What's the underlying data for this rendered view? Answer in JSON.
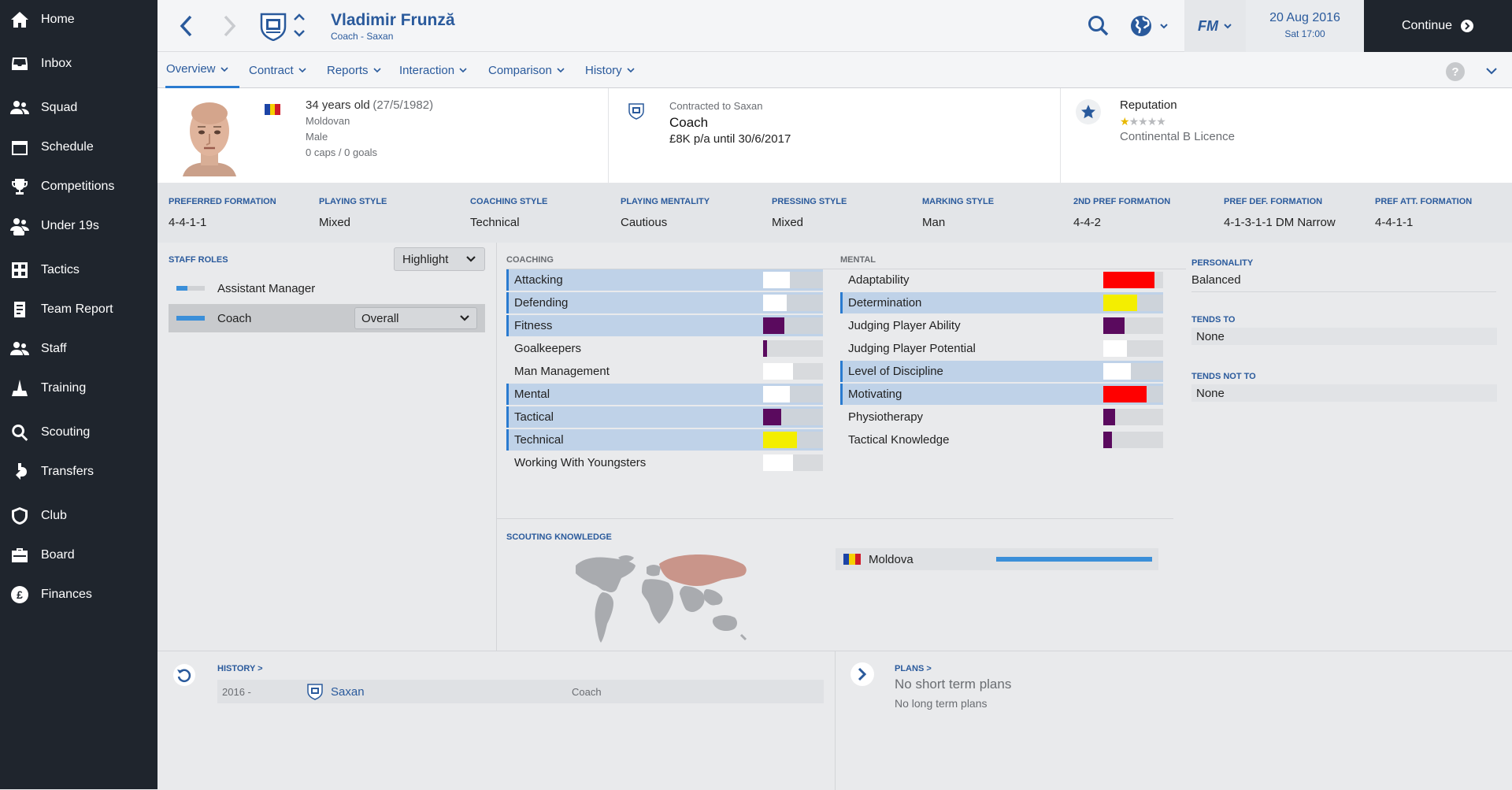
{
  "sidebar": {
    "items": [
      {
        "label": "Home",
        "icon": "home-icon"
      },
      {
        "label": "Inbox",
        "icon": "inbox-icon"
      },
      {
        "label": "Squad",
        "icon": "squad-icon"
      },
      {
        "label": "Schedule",
        "icon": "calendar-icon"
      },
      {
        "label": "Competitions",
        "icon": "trophy-icon"
      },
      {
        "label": "Under 19s",
        "icon": "under19-icon"
      },
      {
        "label": "Tactics",
        "icon": "tactics-icon"
      },
      {
        "label": "Team Report",
        "icon": "report-icon"
      },
      {
        "label": "Staff",
        "icon": "staff-icon"
      },
      {
        "label": "Training",
        "icon": "training-icon"
      },
      {
        "label": "Scouting",
        "icon": "search-icon"
      },
      {
        "label": "Transfers",
        "icon": "transfers-icon"
      },
      {
        "label": "Club",
        "icon": "shield-icon"
      },
      {
        "label": "Board",
        "icon": "briefcase-icon"
      },
      {
        "label": "Finances",
        "icon": "pound-icon"
      }
    ]
  },
  "header": {
    "name": "Vladimir Frunză",
    "subtitle": "Coach - Saxan",
    "fm_label": "FM",
    "date": "20 Aug 2016",
    "day_time": "Sat 17:00",
    "continue_label": "Continue"
  },
  "tabs": [
    "Overview",
    "Contract",
    "Reports",
    "Interaction",
    "Comparison",
    "History"
  ],
  "bio": {
    "age": "34 years old",
    "dob": "(27/5/1982)",
    "nationality": "Moldovan",
    "gender": "Male",
    "caps": "0 caps / 0 goals"
  },
  "contract": {
    "label": "Contracted to Saxan",
    "role": "Coach",
    "wage": "£8K p/a until 30/6/2017"
  },
  "reputation": {
    "label": "Reputation",
    "stars_filled": 1,
    "stars_total": 5,
    "licence": "Continental B Licence"
  },
  "tactics": [
    {
      "label": "PREFERRED FORMATION",
      "value": "4-4-1-1"
    },
    {
      "label": "PLAYING STYLE",
      "value": "Mixed"
    },
    {
      "label": "COACHING STYLE",
      "value": "Technical"
    },
    {
      "label": "PLAYING MENTALITY",
      "value": "Cautious"
    },
    {
      "label": "PRESSING STYLE",
      "value": "Mixed"
    },
    {
      "label": "MARKING STYLE",
      "value": "Man"
    },
    {
      "label": "2ND PREF FORMATION",
      "value": "4-4-2"
    },
    {
      "label": "PREF DEF. FORMATION",
      "value": "4-1-3-1-1 DM Narrow"
    },
    {
      "label": "PREF ATT. FORMATION",
      "value": "4-4-1-1"
    }
  ],
  "staff_roles": {
    "title": "STAFF ROLES",
    "highlight_label": "Highlight",
    "roles": [
      {
        "label": "Assistant Manager",
        "level": 0.4
      },
      {
        "label": "Coach",
        "level": 1.0,
        "selected": true
      }
    ],
    "overall_label": "Overall"
  },
  "coaching": {
    "title": "COACHING",
    "attributes": [
      {
        "label": "Attacking",
        "highlighted": true,
        "level": 0.45,
        "color": "#ffffff"
      },
      {
        "label": "Defending",
        "highlighted": true,
        "level": 0.4,
        "color": "#ffffff"
      },
      {
        "label": "Fitness",
        "highlighted": true,
        "level": 0.36,
        "color": "#5a0a5e"
      },
      {
        "label": "Goalkeepers",
        "highlighted": false,
        "level": 0.06,
        "color": "#5a0a5e"
      },
      {
        "label": "Man Management",
        "highlighted": false,
        "level": 0.5,
        "color": "#ffffff"
      },
      {
        "label": "Mental",
        "highlighted": true,
        "level": 0.45,
        "color": "#ffffff"
      },
      {
        "label": "Tactical",
        "highlighted": true,
        "level": 0.3,
        "color": "#5a0a5e"
      },
      {
        "label": "Technical",
        "highlighted": true,
        "level": 0.56,
        "color": "#f4ee00"
      },
      {
        "label": "Working With Youngsters",
        "highlighted": false,
        "level": 0.5,
        "color": "#ffffff"
      }
    ]
  },
  "mental": {
    "title": "MENTAL",
    "attributes": [
      {
        "label": "Adaptability",
        "highlighted": false,
        "level": 0.85,
        "color": "#ff0000"
      },
      {
        "label": "Determination",
        "highlighted": true,
        "level": 0.56,
        "color": "#f4ee00"
      },
      {
        "label": "Judging Player Ability",
        "highlighted": false,
        "level": 0.35,
        "color": "#5a0a5e"
      },
      {
        "label": "Judging Player Potential",
        "highlighted": false,
        "level": 0.4,
        "color": "#ffffff"
      },
      {
        "label": "Level of Discipline",
        "highlighted": true,
        "level": 0.46,
        "color": "#ffffff"
      },
      {
        "label": "Motivating",
        "highlighted": true,
        "level": 0.72,
        "color": "#ff0000"
      },
      {
        "label": "Physiotherapy",
        "highlighted": false,
        "level": 0.2,
        "color": "#5a0a5e"
      },
      {
        "label": "Tactical Knowledge",
        "highlighted": false,
        "level": 0.14,
        "color": "#5a0a5e"
      }
    ]
  },
  "personality": {
    "title": "PERSONALITY",
    "value": "Balanced",
    "tends_to_title": "TENDS TO",
    "tends_to": "None",
    "tends_not_title": "TENDS NOT TO",
    "tends_not": "None"
  },
  "scouting": {
    "title": "SCOUTING KNOWLEDGE",
    "country": "Moldova",
    "knowledge": 1.0
  },
  "history": {
    "title": "HISTORY >",
    "rows": [
      {
        "years": "2016 -",
        "club": "Saxan",
        "role": "Coach"
      }
    ]
  },
  "plans": {
    "title": "PLANS >",
    "short": "No short term plans",
    "long": "No long term plans"
  }
}
